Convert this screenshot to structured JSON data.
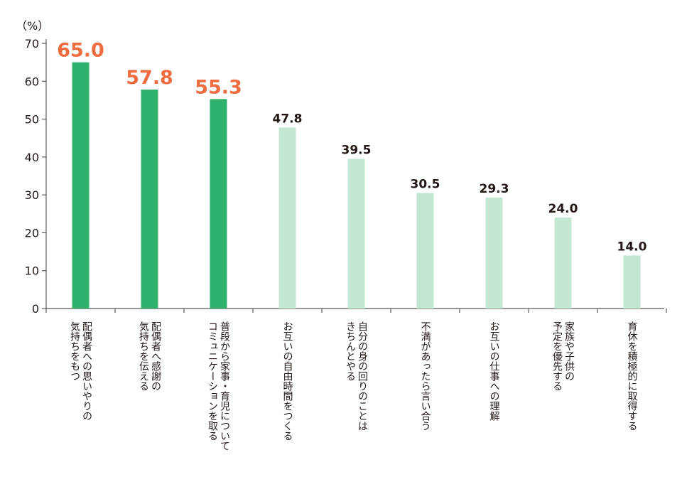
{
  "chart_data": {
    "type": "bar",
    "ylabel": "（%）",
    "ylim": [
      0,
      70
    ],
    "yticks": [
      0,
      10,
      20,
      30,
      40,
      50,
      60,
      70
    ],
    "grid": false,
    "categories": [
      [
        "配偶者への思いやりの",
        "気持ちをもつ"
      ],
      [
        "配偶者へ感謝の",
        "気持ちを伝える"
      ],
      [
        "普段から家事・育児について",
        "コミュニケーションを取る"
      ],
      [
        "お互いの自由時間をつくる"
      ],
      [
        "自分の身の回りのことは",
        "きちんとやる"
      ],
      [
        "不満があったら言い合う"
      ],
      [
        "お互いの仕事への理解"
      ],
      [
        "家族や子供の",
        "予定を優先する"
      ],
      [
        "育休を積極的に取得する"
      ]
    ],
    "values": [
      65.0,
      57.8,
      55.3,
      47.8,
      39.5,
      30.5,
      29.3,
      24.0,
      14.0
    ],
    "value_labels": [
      "65.0",
      "57.8",
      "55.3",
      "47.8",
      "39.5",
      "30.5",
      "29.3",
      "24.0",
      "14.0"
    ],
    "highlighted_count": 3,
    "colors": {
      "highlight_bar": "#2fb36c",
      "normal_bar": "#c2e8d4",
      "highlight_label": "#ee6c3f",
      "normal_label": "#231815",
      "axis": "#595757"
    }
  }
}
